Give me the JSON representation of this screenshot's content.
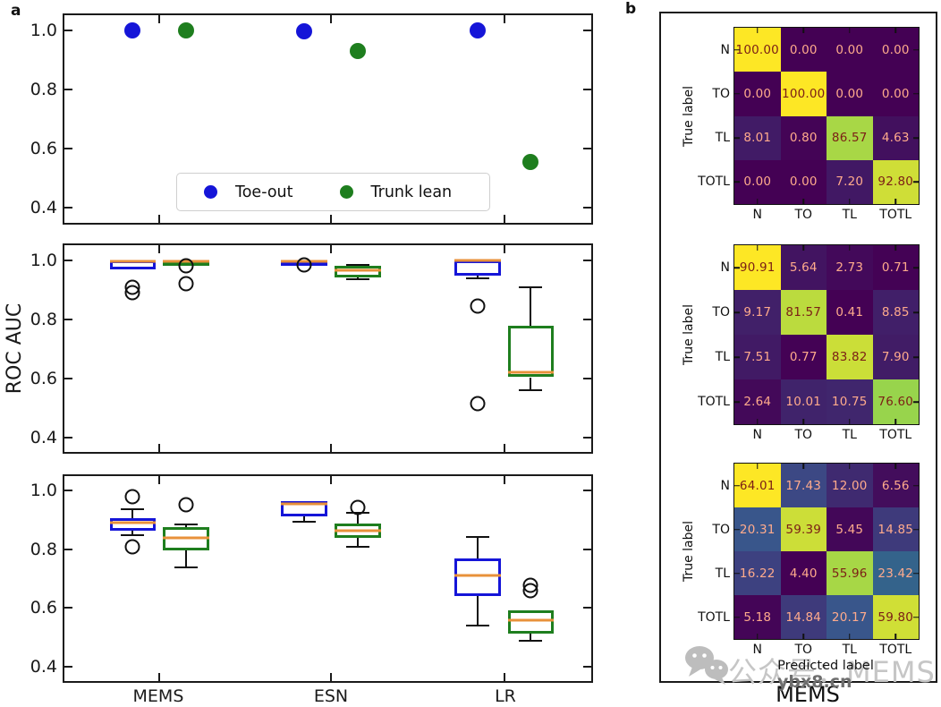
{
  "labels": {
    "panel_a": "a",
    "panel_b": "b"
  },
  "watermark": {
    "main": "公众号：MEMS",
    "sub": "ybx8.cn"
  },
  "colors": {
    "blue": "#1515d8",
    "green": "#1e7e1e",
    "median": "#e8913a",
    "cm_text_light": "#ffab8c",
    "cm_text_dark": "#7c2016"
  },
  "chart_data": [
    {
      "type": "scatter",
      "id": "roc-auc-scatter",
      "categories": [
        "MEMS",
        "ESN",
        "LR"
      ],
      "ylim": [
        0.35,
        1.05
      ],
      "yticks": [
        1.0,
        0.8,
        0.6,
        0.4
      ],
      "legend_position": "lower center",
      "series": [
        {
          "name": "Toe-out",
          "color": "#1515d8",
          "values": [
            1.0,
            0.997,
            1.0
          ]
        },
        {
          "name": "Trunk lean",
          "color": "#1e7e1e",
          "values": [
            1.0,
            0.93,
            0.555
          ]
        }
      ]
    },
    {
      "type": "box",
      "id": "roc-auc-box-middle",
      "categories": [
        "MEMS",
        "ESN",
        "LR"
      ],
      "ylabel": "ROC AUC",
      "ylim": [
        0.35,
        1.05
      ],
      "yticks": [
        1.0,
        0.8,
        0.6,
        0.4
      ],
      "series": [
        {
          "name": "Toe-out",
          "color": "#1515d8",
          "boxes": [
            {
              "q1": 0.968,
              "q3": 1.0,
              "med": 0.996,
              "lo": 0.968,
              "hi": 1.0,
              "outliers": [
                0.908,
                0.888
              ]
            },
            {
              "q1": 0.988,
              "q3": 0.999,
              "med": 0.994,
              "lo": 0.988,
              "hi": 0.999,
              "outliers": [
                0.982
              ]
            },
            {
              "q1": 0.948,
              "q3": 1.0,
              "med": 0.997,
              "lo": 0.938,
              "hi": 1.0,
              "outliers": [
                0.845,
                0.515
              ]
            }
          ]
        },
        {
          "name": "Trunk lean",
          "color": "#1e7e1e",
          "boxes": [
            {
              "q1": 0.986,
              "q3": 1.0,
              "med": 0.995,
              "lo": 0.986,
              "hi": 1.0,
              "outliers": [
                0.979,
                0.921
              ]
            },
            {
              "q1": 0.942,
              "q3": 0.979,
              "med": 0.966,
              "lo": 0.934,
              "hi": 0.982,
              "outliers": []
            },
            {
              "q1": 0.603,
              "q3": 0.776,
              "med": 0.621,
              "lo": 0.558,
              "hi": 0.909,
              "outliers": []
            }
          ]
        }
      ]
    },
    {
      "type": "box",
      "id": "roc-auc-box-bottom",
      "categories": [
        "MEMS",
        "ESN",
        "LR"
      ],
      "xticklabels": [
        "MEMS",
        "ESN",
        "LR"
      ],
      "ylim": [
        0.35,
        1.05
      ],
      "yticks": [
        1.0,
        0.8,
        0.6,
        0.4
      ],
      "series": [
        {
          "name": "Toe-out",
          "color": "#1515d8",
          "boxes": [
            {
              "q1": 0.863,
              "q3": 0.906,
              "med": 0.891,
              "lo": 0.848,
              "hi": 0.938,
              "outliers": [
                0.98,
                0.81
              ]
            },
            {
              "q1": 0.912,
              "q3": 0.963,
              "med": 0.954,
              "lo": 0.894,
              "hi": 0.963,
              "outliers": []
            },
            {
              "q1": 0.64,
              "q3": 0.768,
              "med": 0.71,
              "lo": 0.538,
              "hi": 0.843,
              "outliers": []
            }
          ]
        },
        {
          "name": "Trunk lean",
          "color": "#1e7e1e",
          "boxes": [
            {
              "q1": 0.796,
              "q3": 0.877,
              "med": 0.84,
              "lo": 0.737,
              "hi": 0.885,
              "outliers": [
                0.953
              ]
            },
            {
              "q1": 0.838,
              "q3": 0.888,
              "med": 0.864,
              "lo": 0.809,
              "hi": 0.926,
              "outliers": [
                0.944
              ]
            },
            {
              "q1": 0.513,
              "q3": 0.592,
              "med": 0.558,
              "lo": 0.487,
              "hi": 0.592,
              "outliers": [
                0.677,
                0.658
              ]
            }
          ]
        }
      ]
    },
    {
      "type": "heatmap",
      "id": "confusion-matrix-top",
      "rows": [
        "N",
        "TO",
        "TL",
        "TOTL"
      ],
      "cols": [
        "N",
        "TO",
        "TL",
        "TOTL"
      ],
      "ylabel": "True label",
      "colormap": "viridis",
      "values": [
        [
          100.0,
          0.0,
          0.0,
          0.0
        ],
        [
          0.0,
          100.0,
          0.0,
          0.0
        ],
        [
          8.01,
          0.8,
          86.57,
          4.63
        ],
        [
          0.0,
          0.0,
          7.2,
          92.8
        ]
      ]
    },
    {
      "type": "heatmap",
      "id": "confusion-matrix-middle",
      "rows": [
        "N",
        "TO",
        "TL",
        "TOTL"
      ],
      "cols": [
        "N",
        "TO",
        "TL",
        "TOTL"
      ],
      "ylabel": "True label",
      "colormap": "viridis",
      "values": [
        [
          90.91,
          5.64,
          2.73,
          0.71
        ],
        [
          9.17,
          81.57,
          0.41,
          8.85
        ],
        [
          7.51,
          0.77,
          83.82,
          7.9
        ],
        [
          2.64,
          10.01,
          10.75,
          76.6
        ]
      ]
    },
    {
      "type": "heatmap",
      "id": "confusion-matrix-bottom",
      "rows": [
        "N",
        "TO",
        "TL",
        "TOTL"
      ],
      "cols": [
        "N",
        "TO",
        "TL",
        "TOTL"
      ],
      "ylabel": "True label",
      "xlabel": "Predicted label",
      "title": "MEMS",
      "colormap": "viridis",
      "values": [
        [
          64.01,
          17.43,
          12.0,
          6.56
        ],
        [
          20.31,
          59.39,
          5.45,
          14.85
        ],
        [
          16.22,
          4.4,
          55.96,
          23.42
        ],
        [
          5.18,
          14.84,
          20.17,
          59.8
        ]
      ]
    }
  ]
}
